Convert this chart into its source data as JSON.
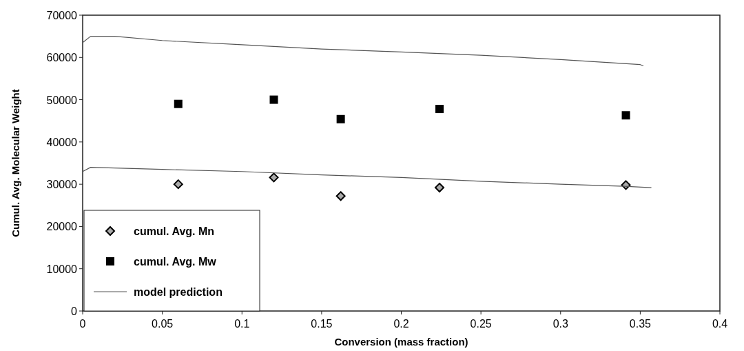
{
  "chart_data": {
    "type": "scatter",
    "xlabel": "Conversion (mass fraction)",
    "ylabel": "Cumul. Avg. Molecular Weight",
    "xlim": [
      0,
      0.4
    ],
    "xticks": [
      0,
      0.05,
      0.1,
      0.15,
      0.2,
      0.25,
      0.3,
      0.35,
      0.4
    ],
    "ylim": [
      0,
      70000
    ],
    "yticks": [
      0,
      10000,
      20000,
      30000,
      40000,
      50000,
      60000,
      70000
    ],
    "grid": false,
    "legend": "bottom left",
    "series": [
      {
        "name": "cumul. Avg. Mn",
        "type": "scatter",
        "marker": "diamond",
        "color": "#000000",
        "x": [
          0.06,
          0.12,
          0.162,
          0.224,
          0.341
        ],
        "values": [
          30000,
          31600,
          27200,
          29200,
          29800
        ]
      },
      {
        "name": "cumul. Avg. Mw",
        "type": "scatter",
        "marker": "square",
        "color": "#000000",
        "x": [
          0.06,
          0.12,
          0.162,
          0.224,
          0.341
        ],
        "values": [
          49000,
          50000,
          45400,
          47800,
          46300
        ]
      },
      {
        "name": "model prediction",
        "type": "line",
        "marker": "none",
        "color": "#555555",
        "x": [
          0,
          0.005,
          0.02,
          0.05,
          0.1,
          0.15,
          0.2,
          0.25,
          0.3,
          0.35,
          0.352
        ],
        "values": [
          63500,
          65000,
          65000,
          64000,
          63000,
          62000,
          61300,
          60500,
          59500,
          58300,
          58000
        ]
      },
      {
        "type": "line",
        "marker": "none",
        "color": "#555555",
        "x": [
          0,
          0.005,
          0.05,
          0.1,
          0.15,
          0.2,
          0.25,
          0.3,
          0.34,
          0.357
        ],
        "values": [
          33000,
          34000,
          33500,
          33000,
          32200,
          31600,
          30700,
          30000,
          29500,
          29200
        ]
      }
    ]
  }
}
